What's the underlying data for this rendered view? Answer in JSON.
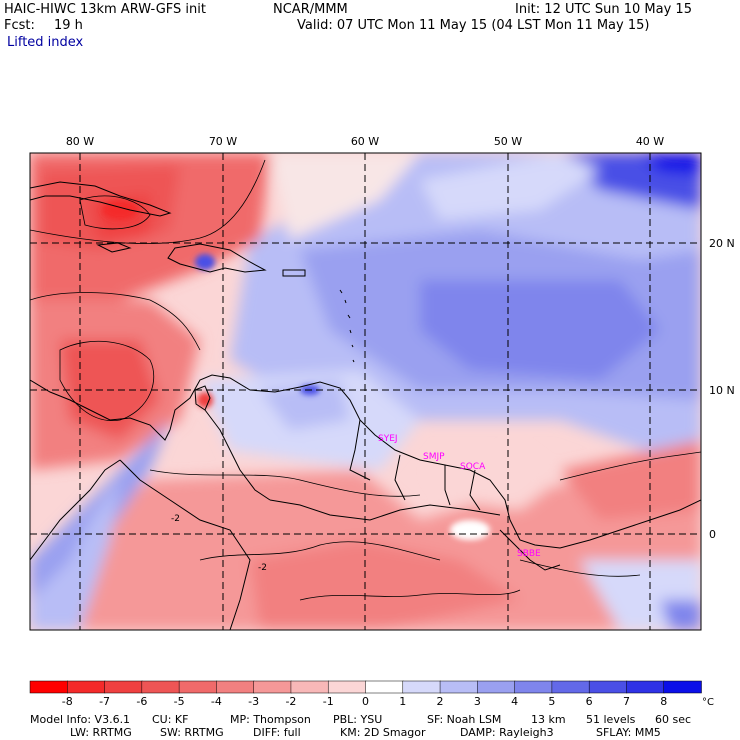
{
  "header": {
    "model_title": "HAIC-HIWC 13km ARW-GFS init",
    "org": "NCAR/MMM",
    "init": "Init: 12 UTC Sun 10 May 15",
    "fcst_label": "Fcst:",
    "fcst_value": "19 h",
    "valid": "Valid: 07 UTC Mon 11 May 15 (04 LST Mon 11 May 15)",
    "field": "Lifted index"
  },
  "map": {
    "lon_labels": [
      "80 W",
      "70 W",
      "60 W",
      "50 W",
      "40 W"
    ],
    "lat_labels": [
      "20 N",
      "10 N",
      "0"
    ],
    "stations": [
      "SYEJ",
      "SMJP",
      "SOCA",
      "SBBE"
    ],
    "contour_labels": [
      "-2",
      "-2"
    ]
  },
  "colorbar": {
    "ticks": [
      "-8",
      "-7",
      "-6",
      "-5",
      "-4",
      "-3",
      "-2",
      "-1",
      "0",
      "1",
      "2",
      "3",
      "4",
      "5",
      "6",
      "7",
      "8"
    ],
    "unit": "°C",
    "colors": [
      "#ff0000",
      "#f42a2a",
      "#ef4040",
      "#ee5555",
      "#f06a6a",
      "#f28080",
      "#f59898",
      "#f8b8b8",
      "#fbd6d6",
      "#ffffff",
      "#d6d9fa",
      "#b8bdf6",
      "#9aa0f0",
      "#7f85ec",
      "#6369e8",
      "#4a4fe6",
      "#2f32e6",
      "#0b0fe8"
    ]
  },
  "footer": {
    "line1": [
      "Model Info: V3.6.1",
      "CU: KF",
      "MP: Thompson",
      "PBL: YSU",
      "SF: Noah LSM",
      "13 km",
      "51 levels",
      "60 sec"
    ],
    "line2": [
      "LW: RRTMG",
      "SW: RRTMG",
      "DIFF: full",
      "KM: 2D Smagor",
      "DAMP: Rayleigh3",
      "SFLAY: MM5"
    ]
  }
}
